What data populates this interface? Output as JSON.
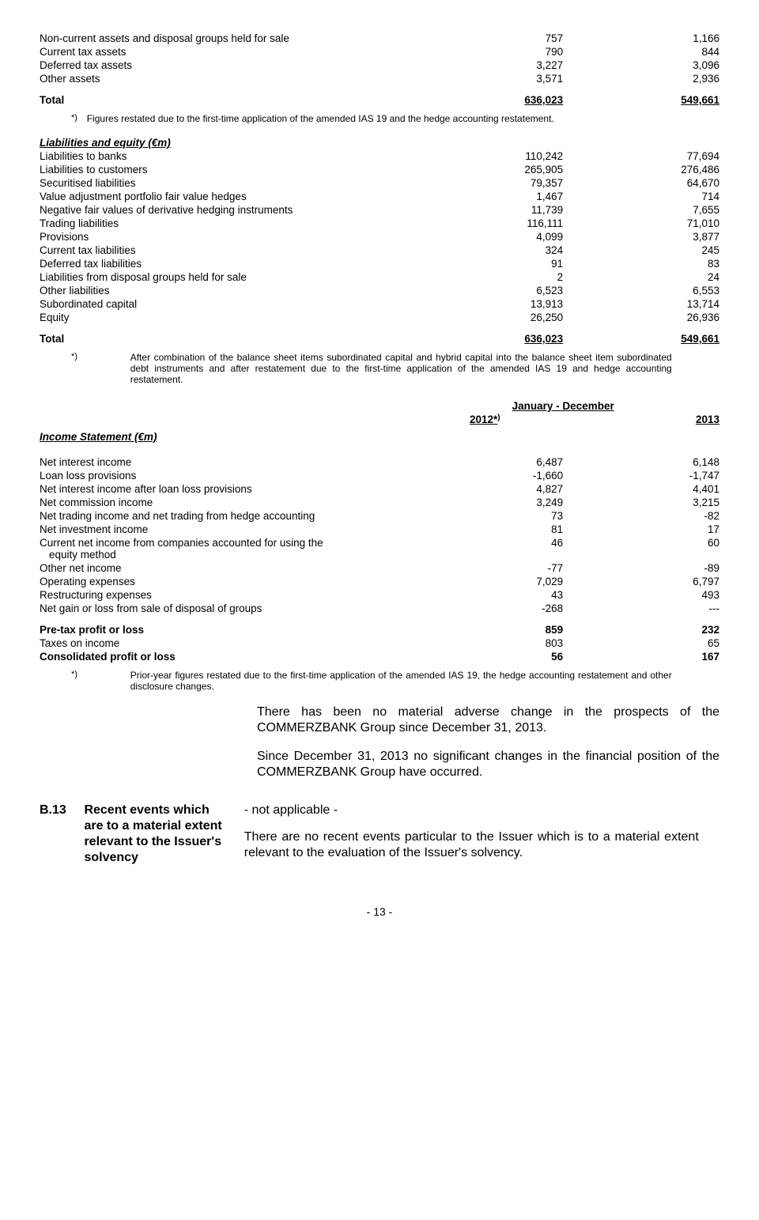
{
  "assets_tail": {
    "rows": [
      {
        "label": "Non-current assets and disposal groups held for sale",
        "v1": "757",
        "v2": "1,166"
      },
      {
        "label": "Current tax assets",
        "v1": "790",
        "v2": "844"
      },
      {
        "label": "Deferred tax assets",
        "v1": "3,227",
        "v2": "3,096"
      },
      {
        "label": "Other assets",
        "v1": "3,571",
        "v2": "2,936"
      }
    ],
    "total": {
      "label": "Total",
      "v1": "636,023",
      "v2": "549,661"
    }
  },
  "note1": {
    "symbol": "*)",
    "text": "Figures restated due to the first-time application of the amended IAS 19 and the hedge accounting restatement."
  },
  "liab": {
    "heading": "Liabilities and equity (€m)",
    "rows": [
      {
        "label": "Liabilities to banks",
        "v1": "110,242",
        "v2": "77,694"
      },
      {
        "label": "Liabilities to customers",
        "v1": "265,905",
        "v2": "276,486"
      },
      {
        "label": "Securitised liabilities",
        "v1": "79,357",
        "v2": "64,670"
      },
      {
        "label": "Value adjustment portfolio fair value hedges",
        "v1": "1,467",
        "v2": "714"
      },
      {
        "label": "Negative fair values of derivative hedging instruments",
        "v1": "11,739",
        "v2": "7,655"
      },
      {
        "label": "Trading liabilities",
        "v1": "116,111",
        "v2": "71,010"
      },
      {
        "label": "Provisions",
        "v1": "4,099",
        "v2": "3,877"
      },
      {
        "label": "Current tax liabilities",
        "v1": "324",
        "v2": "245"
      },
      {
        "label": "Deferred tax liabilities",
        "v1": "91",
        "v2": "83"
      },
      {
        "label": "Liabilities from disposal groups held for sale",
        "v1": "2",
        "v2": "24"
      },
      {
        "label": "Other liabilities",
        "v1": "6,523",
        "v2": "6,553"
      },
      {
        "label": "Subordinated capital",
        "v1": "13,913",
        "v2": "13,714"
      },
      {
        "label": "Equity",
        "v1": "26,250",
        "v2": "26,936"
      }
    ],
    "total": {
      "label": "Total",
      "v1": "636,023",
      "v2": "549,661"
    }
  },
  "note2": {
    "symbol": "*)",
    "text": "After combination of the balance sheet items subordinated capital and hybrid capital into the balance sheet item subordinated debt instruments and after restatement due to the first-time application of the amended IAS 19 and hedge accounting restatement."
  },
  "income_header": {
    "period": "January - December",
    "year1": "2012*",
    "year1_sup": ")",
    "year2": "2013"
  },
  "income_heading": "Income Statement (€m)",
  "income": {
    "rows": [
      {
        "label": "Net interest income",
        "v1": "6,487",
        "v2": "6,148"
      },
      {
        "label": "Loan loss provisions",
        "v1": "-1,660",
        "v2": "-1,747"
      },
      {
        "label": "Net interest income after loan loss provisions",
        "v1": "4,827",
        "v2": "4,401"
      },
      {
        "label": "Net commission income",
        "v1": "3,249",
        "v2": "3,215"
      },
      {
        "label": "Net trading income and net trading from hedge accounting",
        "v1": "73",
        "v2": "-82"
      },
      {
        "label": "Net investment income",
        "v1": "81",
        "v2": "17"
      },
      {
        "label": "Current net income from companies accounted for using the equity method",
        "v1": "46",
        "v2": "60"
      },
      {
        "label": "Other net income",
        "v1": "-77",
        "v2": "-89"
      },
      {
        "label": "Operating expenses",
        "v1": "7,029",
        "v2": "6,797"
      },
      {
        "label": "Restructuring expenses",
        "v1": "43",
        "v2": "493"
      },
      {
        "label": "Net gain or loss from sale of disposal of groups",
        "v1": "-268",
        "v2": "---"
      }
    ],
    "summary": [
      {
        "label": "Pre-tax profit or loss",
        "v1": "859",
        "v2": "232",
        "bold": true
      },
      {
        "label": "Taxes on income",
        "v1": "803",
        "v2": "65",
        "bold": false
      },
      {
        "label": "Consolidated profit or loss",
        "v1": "56",
        "v2": "167",
        "bold": true
      }
    ]
  },
  "note3": {
    "symbol": "*)",
    "text": "Prior-year figures restated due to the first-time application of the amended IAS 19, the hedge accounting restatement and other disclosure changes."
  },
  "para1": "There has been no material adverse change in the prospects of the COMMERZBANK Group since December 31, 2013.",
  "para2": "Since December 31, 2013 no significant changes in the financial position of the COMMERZBANK Group have occurred.",
  "b13": {
    "id": "B.13",
    "label": "Recent events which are to a material extent relevant to the Issuer's solvency",
    "na": "- not applicable -",
    "text": "There are no recent events particular to the Issuer which is to a material extent relevant to the evaluation of the Issuer's solvency."
  },
  "page_number": "- 13 -"
}
